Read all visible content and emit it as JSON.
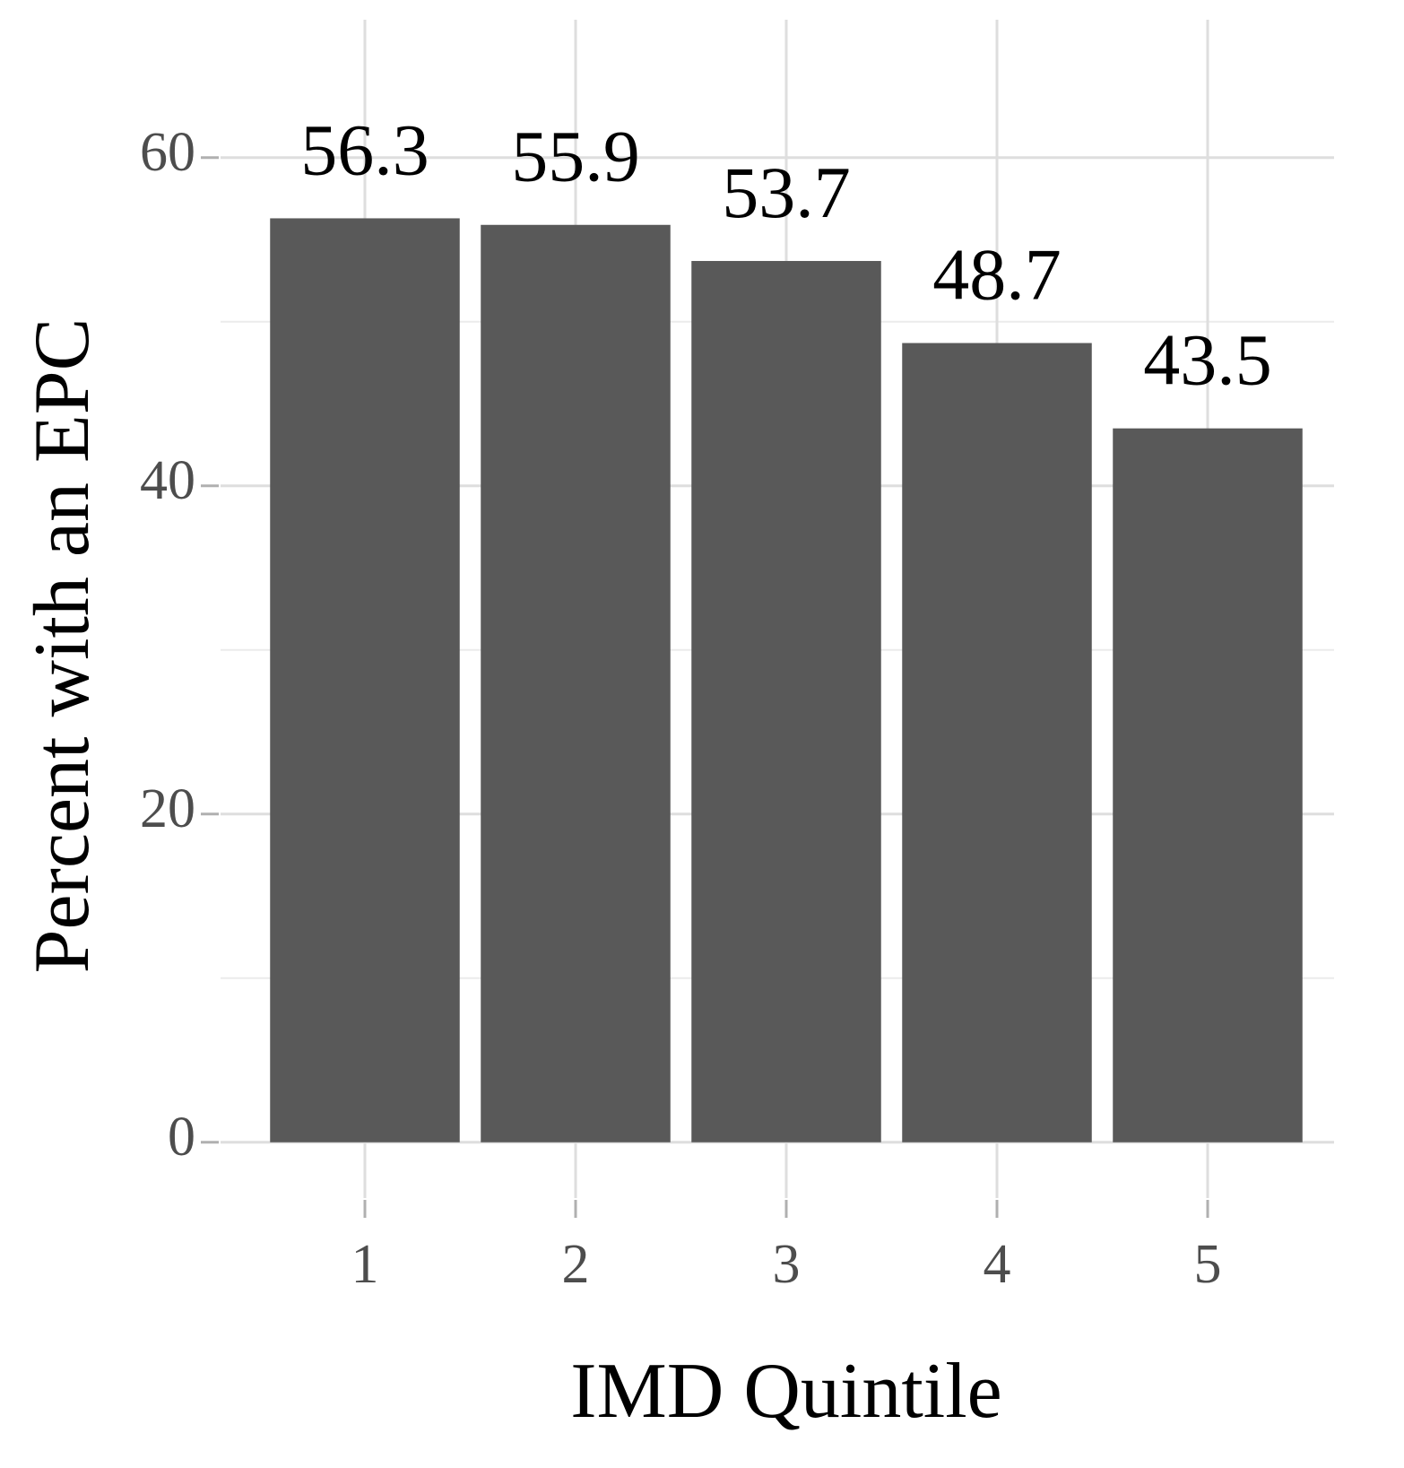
{
  "chart_data": {
    "type": "bar",
    "x_label": "IMD Quintile",
    "y_label": "Percent with an EPC",
    "categories": [
      "1",
      "2",
      "3",
      "4",
      "5"
    ],
    "values": [
      56.3,
      55.9,
      53.7,
      48.7,
      43.5
    ],
    "color": "#595959",
    "ylim": [
      -3.4,
      68.4
    ],
    "yticks": [
      0,
      20,
      40,
      60
    ],
    "y_minor_gridlines": [
      10,
      30,
      50
    ],
    "grid": true
  }
}
